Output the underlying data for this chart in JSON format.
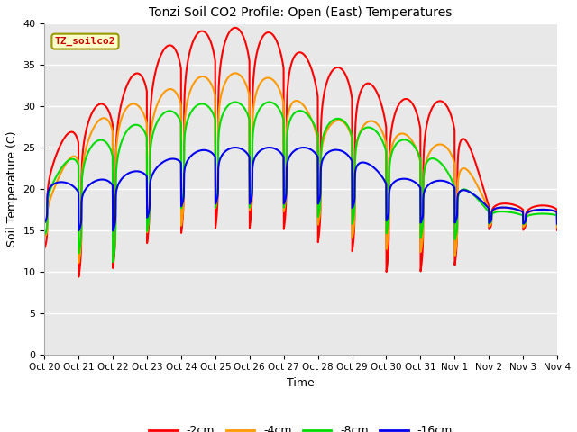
{
  "title": "Tonzi Soil CO2 Profile: Open (East) Temperatures",
  "ylabel": "Soil Temperature (C)",
  "xlabel": "Time",
  "xlabels": [
    "Oct 20",
    "Oct 21",
    "Oct 22",
    "Oct 23",
    "Oct 24",
    "Oct 25",
    "Oct 26",
    "Oct 27",
    "Oct 28",
    "Oct 29",
    "Oct 30",
    "Oct 31",
    "Nov 1",
    "Nov 2",
    "Nov 3",
    "Nov 4"
  ],
  "ylim": [
    0,
    40
  ],
  "background_color": "#e8e8e8",
  "legend_label": "TZ_soilco2",
  "n_days": 15,
  "pts_per_day": 144,
  "peak_phase": 0.58,
  "sharpness": 4.0,
  "series": [
    {
      "label": "-2cm",
      "color": "#ff0000",
      "linewidth": 1.5,
      "peaks": [
        22.5,
        28.8,
        31.2,
        35.5,
        38.5,
        39.5,
        39.5,
        38.5,
        34.7,
        34.7,
        31.0,
        30.8,
        30.5,
        18.5,
        18.0
      ],
      "troughs": [
        11.2,
        6.0,
        6.8,
        9.6,
        10.5,
        11.0,
        11.0,
        11.0,
        9.8,
        8.5,
        6.2,
        6.3,
        7.2,
        14.5,
        14.5
      ]
    },
    {
      "label": "-4cm",
      "color": "#ff9900",
      "linewidth": 1.5,
      "peaks": [
        18.5,
        25.8,
        30.0,
        30.5,
        33.0,
        34.0,
        34.0,
        33.0,
        28.0,
        28.5,
        28.0,
        25.5,
        25.3,
        18.0,
        17.5
      ],
      "troughs": [
        13.5,
        8.5,
        8.2,
        12.0,
        12.5,
        14.8,
        14.5,
        14.5,
        13.5,
        11.5,
        10.0,
        10.0,
        9.5,
        15.0,
        15.0
      ]
    },
    {
      "label": "-8cm",
      "color": "#00dd00",
      "linewidth": 1.5,
      "peaks": [
        20.2,
        25.0,
        26.5,
        28.5,
        30.0,
        30.5,
        30.5,
        30.5,
        28.5,
        28.5,
        26.5,
        25.5,
        21.5,
        17.5,
        17.0
      ],
      "troughs": [
        13.5,
        10.0,
        8.5,
        12.5,
        15.5,
        15.5,
        15.5,
        15.5,
        14.5,
        13.5,
        12.5,
        12.0,
        12.5,
        15.5,
        15.5
      ]
    },
    {
      "label": "-16cm",
      "color": "#0000ee",
      "linewidth": 1.5,
      "peaks": [
        21.2,
        20.5,
        21.5,
        22.5,
        24.2,
        25.0,
        25.0,
        25.0,
        25.0,
        24.5,
        21.5,
        21.0,
        21.0,
        18.0,
        17.5
      ],
      "troughs": [
        15.0,
        14.0,
        13.8,
        15.5,
        16.8,
        17.0,
        17.0,
        17.0,
        17.0,
        16.5,
        15.2,
        15.0,
        15.0,
        15.5,
        15.5
      ]
    }
  ]
}
